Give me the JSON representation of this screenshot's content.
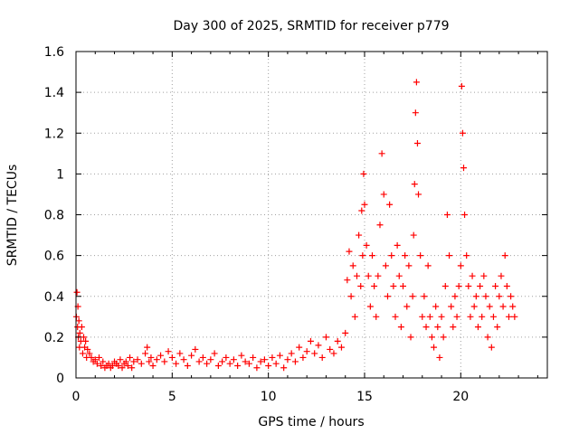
{
  "chart_data": {
    "type": "scatter",
    "title": "Day 300 of 2025, SRMTID for receiver p779",
    "xlabel": "GPS time / hours",
    "ylabel": "SRMTID / TECUs",
    "xlim": [
      0,
      24.5
    ],
    "ylim": [
      0,
      1.6
    ],
    "xticks": [
      "0",
      "5",
      "10",
      "15",
      "20"
    ],
    "xtick_values": [
      0,
      5,
      10,
      15,
      20
    ],
    "yticks": [
      "0",
      "0.2",
      "0.4",
      "0.6",
      "0.8",
      "1",
      "1.2",
      "1.4",
      "1.6"
    ],
    "ytick_values": [
      0,
      0.2,
      0.4,
      0.6,
      0.8,
      1.0,
      1.2,
      1.4,
      1.6
    ],
    "grid": true,
    "marker": "plus",
    "color": "#ff0000",
    "series": [
      {
        "name": "SRMTID",
        "x": [
          0.02,
          0.05,
          0.08,
          0.1,
          0.12,
          0.15,
          0.18,
          0.2,
          0.25,
          0.3,
          0.35,
          0.4,
          0.45,
          0.5,
          0.55,
          0.6,
          0.7,
          0.8,
          0.9,
          1.0,
          1.1,
          1.2,
          1.3,
          1.4,
          1.5,
          1.6,
          1.7,
          1.8,
          1.9,
          2.0,
          2.1,
          2.2,
          2.3,
          2.4,
          2.5,
          2.6,
          2.7,
          2.8,
          2.9,
          3.0,
          3.2,
          3.4,
          3.6,
          3.7,
          3.8,
          3.9,
          4.0,
          4.2,
          4.4,
          4.6,
          4.8,
          5.0,
          5.2,
          5.4,
          5.6,
          5.8,
          6.0,
          6.2,
          6.4,
          6.6,
          6.8,
          7.0,
          7.2,
          7.4,
          7.6,
          7.8,
          8.0,
          8.2,
          8.4,
          8.6,
          8.8,
          9.0,
          9.2,
          9.4,
          9.6,
          9.8,
          10.0,
          10.2,
          10.4,
          10.6,
          10.8,
          11.0,
          11.2,
          11.4,
          11.6,
          11.8,
          12.0,
          12.2,
          12.4,
          12.6,
          12.8,
          13.0,
          13.2,
          13.4,
          13.6,
          13.8,
          14.0,
          14.1,
          14.2,
          14.3,
          14.4,
          14.5,
          14.6,
          14.7,
          14.8,
          14.85,
          14.9,
          14.95,
          15.0,
          15.1,
          15.2,
          15.3,
          15.4,
          15.5,
          15.6,
          15.7,
          15.8,
          15.9,
          16.0,
          16.1,
          16.2,
          16.3,
          16.4,
          16.5,
          16.6,
          16.7,
          16.8,
          16.9,
          17.0,
          17.1,
          17.2,
          17.3,
          17.4,
          17.5,
          17.55,
          17.6,
          17.65,
          17.7,
          17.75,
          17.8,
          17.9,
          18.0,
          18.1,
          18.2,
          18.3,
          18.4,
          18.5,
          18.6,
          18.7,
          18.8,
          18.9,
          19.0,
          19.1,
          19.2,
          19.3,
          19.4,
          19.5,
          19.6,
          19.7,
          19.8,
          19.9,
          20.0,
          20.05,
          20.1,
          20.15,
          20.2,
          20.3,
          20.4,
          20.5,
          20.6,
          20.7,
          20.8,
          20.9,
          21.0,
          21.1,
          21.2,
          21.3,
          21.4,
          21.5,
          21.6,
          21.7,
          21.8,
          21.9,
          22.0,
          22.1,
          22.2,
          22.3,
          22.4,
          22.5,
          22.6,
          22.7,
          22.8
        ],
        "y": [
          0.3,
          0.42,
          0.25,
          0.35,
          0.2,
          0.28,
          0.15,
          0.22,
          0.18,
          0.25,
          0.12,
          0.2,
          0.15,
          0.18,
          0.1,
          0.14,
          0.12,
          0.1,
          0.08,
          0.09,
          0.07,
          0.1,
          0.06,
          0.08,
          0.05,
          0.06,
          0.07,
          0.05,
          0.06,
          0.08,
          0.07,
          0.06,
          0.09,
          0.05,
          0.07,
          0.08,
          0.06,
          0.1,
          0.05,
          0.08,
          0.09,
          0.07,
          0.12,
          0.15,
          0.08,
          0.1,
          0.06,
          0.09,
          0.11,
          0.08,
          0.13,
          0.1,
          0.07,
          0.12,
          0.09,
          0.06,
          0.11,
          0.14,
          0.08,
          0.1,
          0.07,
          0.09,
          0.12,
          0.06,
          0.08,
          0.1,
          0.07,
          0.09,
          0.06,
          0.11,
          0.08,
          0.07,
          0.1,
          0.05,
          0.08,
          0.09,
          0.06,
          0.1,
          0.07,
          0.11,
          0.05,
          0.09,
          0.12,
          0.08,
          0.15,
          0.1,
          0.13,
          0.18,
          0.12,
          0.16,
          0.1,
          0.2,
          0.14,
          0.12,
          0.18,
          0.15,
          0.22,
          0.48,
          0.62,
          0.4,
          0.55,
          0.3,
          0.5,
          0.7,
          0.45,
          0.82,
          0.6,
          1.0,
          0.85,
          0.65,
          0.5,
          0.35,
          0.6,
          0.45,
          0.3,
          0.5,
          0.75,
          1.1,
          0.9,
          0.55,
          0.4,
          0.85,
          0.6,
          0.45,
          0.3,
          0.65,
          0.5,
          0.25,
          0.45,
          0.6,
          0.35,
          0.55,
          0.2,
          0.4,
          0.7,
          0.95,
          1.3,
          1.45,
          1.15,
          0.9,
          0.6,
          0.3,
          0.4,
          0.25,
          0.55,
          0.3,
          0.2,
          0.15,
          0.35,
          0.25,
          0.1,
          0.3,
          0.2,
          0.45,
          0.8,
          0.6,
          0.35,
          0.25,
          0.4,
          0.3,
          0.45,
          0.55,
          1.43,
          1.2,
          1.03,
          0.8,
          0.6,
          0.45,
          0.3,
          0.5,
          0.35,
          0.4,
          0.25,
          0.45,
          0.3,
          0.5,
          0.4,
          0.2,
          0.35,
          0.15,
          0.3,
          0.45,
          0.25,
          0.4,
          0.5,
          0.35,
          0.6,
          0.45,
          0.3,
          0.4,
          0.35,
          0.3
        ]
      }
    ]
  }
}
